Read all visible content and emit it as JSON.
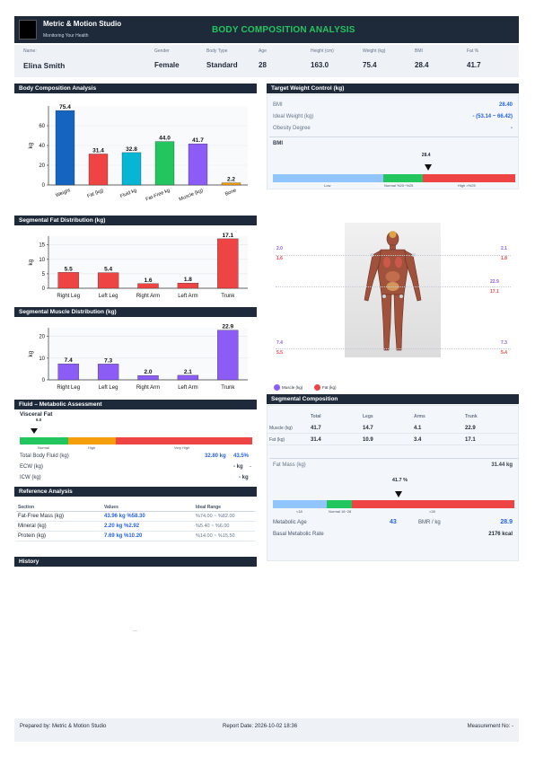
{
  "header": {
    "studio": "Metric & Motion Studio",
    "tagline": "Monitoring Your Health",
    "title": "BODY COMPOSITION ANALYSIS"
  },
  "info": {
    "name_label": "Name:",
    "name": "Elina Smith",
    "gender_label": "Gender",
    "gender": "Female",
    "body_type_label": "Body Type",
    "body_type": "Standard",
    "age_label": "Age",
    "age": "28",
    "height_label": "Height (cm)",
    "height": "163.0",
    "weight_label": "Weight (kg)",
    "weight": "75.4",
    "bmi_label": "BMI",
    "bmi": "28.4",
    "fat_label": "Fat %",
    "fat": "41.7"
  },
  "sections": {
    "body_comp": "Body Composition Analysis",
    "target_weight": "Target Weight Control (kg)",
    "seg_fat": "Segmental Fat Distribution (kg)",
    "seg_muscle": "Segmental Muscle Distribution (kg)",
    "fluid": "Fluid – Metabolic Assessment",
    "reference": "Reference Analysis",
    "history": "History",
    "seg_comp": "Segmental Composition"
  },
  "chart_data": [
    {
      "type": "bar",
      "categories": [
        "Weight",
        "Fat (kg)",
        "Fluid kg",
        "Fat-Free kg",
        "Muscle (kg)",
        "Bone"
      ],
      "values": [
        75.4,
        31.4,
        32.8,
        44.0,
        41.7,
        2.2
      ],
      "colors": [
        "#1565c0",
        "#ef4444",
        "#06b6d4",
        "#22c55e",
        "#8b5cf6",
        "#f59e0b"
      ],
      "ylabel": "kg",
      "ylim": [
        0,
        80
      ],
      "yticks": [
        0,
        20,
        40,
        60
      ]
    },
    {
      "type": "bar",
      "categories": [
        "Right Leg",
        "Left Leg",
        "Right Arm",
        "Left Arm",
        "Trunk"
      ],
      "values": [
        5.5,
        5.4,
        1.6,
        1.8,
        17.1
      ],
      "color": "#ef4444",
      "ylabel": "kg",
      "ylim": [
        0,
        18
      ],
      "yticks": [
        0,
        5,
        10,
        15
      ]
    },
    {
      "type": "bar",
      "categories": [
        "Right Leg",
        "Left Leg",
        "Right Arm",
        "Left Arm",
        "Trunk"
      ],
      "values": [
        7.4,
        7.3,
        2.0,
        2.1,
        22.9
      ],
      "color": "#8b5cf6",
      "ylabel": "kg",
      "ylim": [
        0,
        24
      ],
      "yticks": [
        0,
        10,
        20
      ]
    }
  ],
  "target": {
    "bmi_label": "BMI",
    "bmi_value": "28.40",
    "ideal_label": "Ideal Weight (kg)",
    "ideal_value": "-  (53.14 ~ 66.42)",
    "obesity_label": "Obesity Degree",
    "obesity_value": "-",
    "gauge_title": "BMI",
    "gauge_value": "28.4",
    "gauge_marker_fraction": 0.64,
    "gauge_labels": [
      "Low",
      "Normal %20~%25",
      "High >%25"
    ]
  },
  "body_figure": {
    "left_top_1": "2.0",
    "left_top_2": "1.6",
    "right_top_1": "2.1",
    "right_top_2": "1.8",
    "right_mid_1": "22.9",
    "right_mid_2": "17.1",
    "left_bot_1": "7.4",
    "left_bot_2": "5.5",
    "right_bot_1": "7.3",
    "right_bot_2": "5.4",
    "legend_muscle": "Muscle (kg)",
    "legend_fat": "Fat (kg)"
  },
  "fluid": {
    "visceral_label": "Visceral Fat",
    "visceral_value": "6.0",
    "visceral_marker_fraction": 0.06,
    "gauge_labels": [
      "Normal",
      "High",
      "Very High"
    ],
    "tbf_label": "Total Body Fluid (kg)",
    "tbf_value": "32.80 kg",
    "tbf_pct": "43.5%",
    "ecw_label": "ECW (kg)",
    "ecw_value": "- kg",
    "ecw_pct": "-",
    "icw_label": "ICW (kg)",
    "icw_value": "- kg"
  },
  "reference": {
    "headers": [
      "Section",
      "Values",
      "Ideal Range"
    ],
    "rows": [
      {
        "section": "Fat-Free Mass (kg)",
        "value": "43.96 kg  %58.30",
        "range": "%74.00 ~ %82.00"
      },
      {
        "section": "Mineral (kg)",
        "value": "2.20 kg  %2.92",
        "range": "%5.40 ~ %6.00"
      },
      {
        "section": "Protein (kg)",
        "value": "7.69 kg  %10.20",
        "range": "%14.00 ~ %15.50"
      }
    ]
  },
  "seg_comp": {
    "headers": [
      "",
      "Total",
      "Legs",
      "Arms",
      "Trunk"
    ],
    "rows": [
      {
        "label": "Muscle (kg)",
        "total": "41.7",
        "legs": "14.7",
        "arms": "4.1",
        "trunk": "22.9"
      },
      {
        "label": "Fat (kg)",
        "total": "31.4",
        "legs": "10.9",
        "arms": "3.4",
        "trunk": "17.1"
      }
    ],
    "fat_mass_label": "Fat Mass (kg)",
    "fat_mass_value": "31.44 kg",
    "gauge_value": "41.7 %",
    "gauge_marker_fraction": 0.52,
    "gauge_labels": [
      "<18",
      "Normal 18~28",
      ">28"
    ],
    "metabolic_age_label": "Metabolic Age",
    "metabolic_age": "43",
    "bmr_label": "BMR / kg",
    "bmr_value": "28.9",
    "basal_label": "Basal Metabolic Rate",
    "basal_value": "2176 kcal"
  },
  "history": {
    "placeholder": "—"
  },
  "footer": {
    "prepared": "Prepared by: Metric & Motion Studio",
    "report_date": "Report Date: 2026-10-02 18:36",
    "measurement": "Measurement No: -"
  }
}
